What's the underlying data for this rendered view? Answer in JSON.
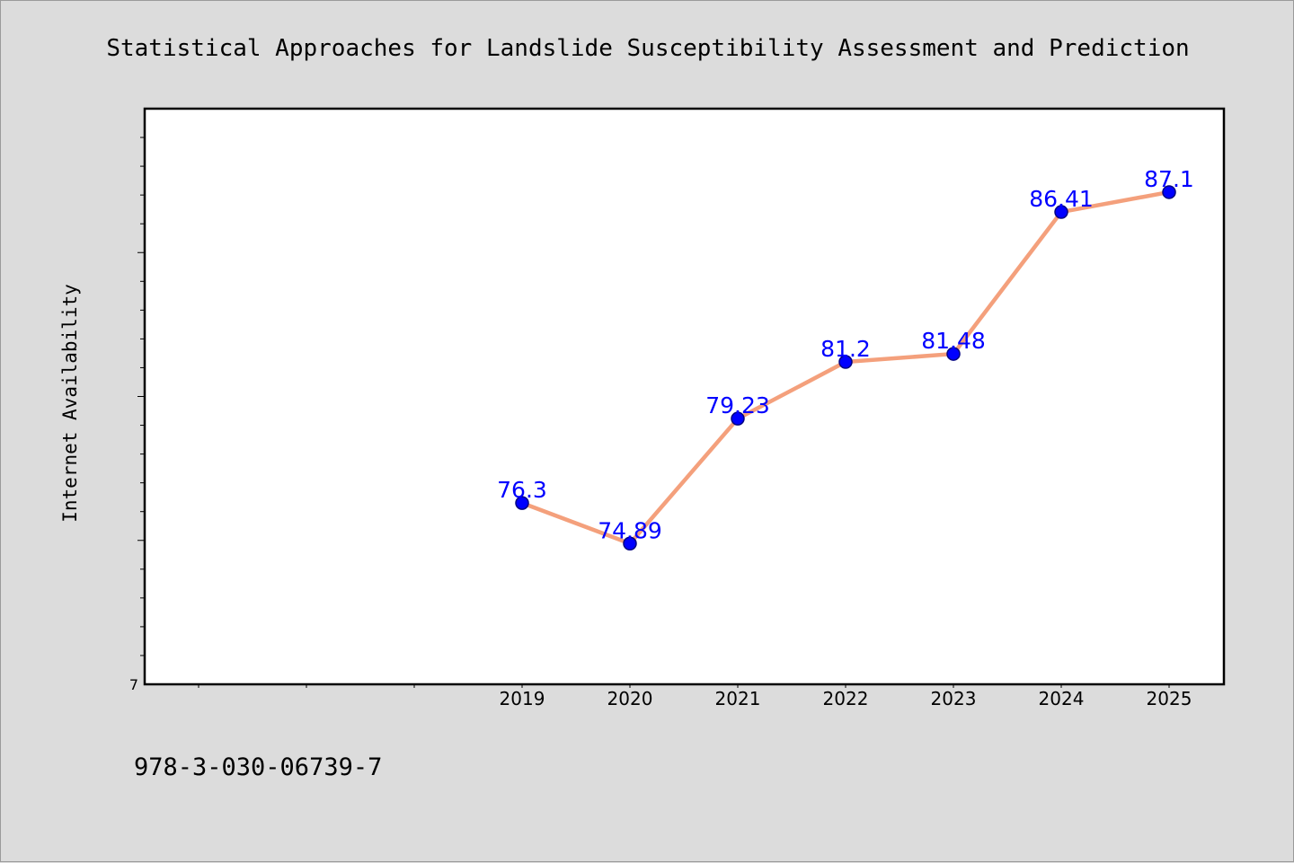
{
  "chart_data": {
    "type": "line",
    "title": "Statistical Approaches for Landslide Susceptibility Assessment and Prediction",
    "xlabel": "",
    "ylabel": "Internet Availability",
    "x": [
      "2019",
      "2020",
      "2021",
      "2022",
      "2023",
      "2024",
      "2025"
    ],
    "x_slots": 10,
    "series": [
      {
        "values": [
          76.3,
          74.89,
          79.23,
          81.2,
          81.48,
          86.41,
          87.1
        ],
        "labels": [
          "76.3",
          "74.89",
          "79.23",
          "81.2",
          "81.48",
          "86.41",
          "87.1"
        ]
      }
    ],
    "ylim": [
      70.0,
      90.0
    ],
    "yticks_labeled": [
      "7"
    ],
    "grid": false,
    "legend": "none",
    "colors": {
      "line": "#f4a07c",
      "marker": "#0000ff",
      "marker_edge": "#000080",
      "data_label": "#0000ff",
      "plot_background": "#ffffff",
      "page_background": "#dcdcdc"
    }
  },
  "footer": {
    "isbn": "978-3-030-06739-7"
  }
}
